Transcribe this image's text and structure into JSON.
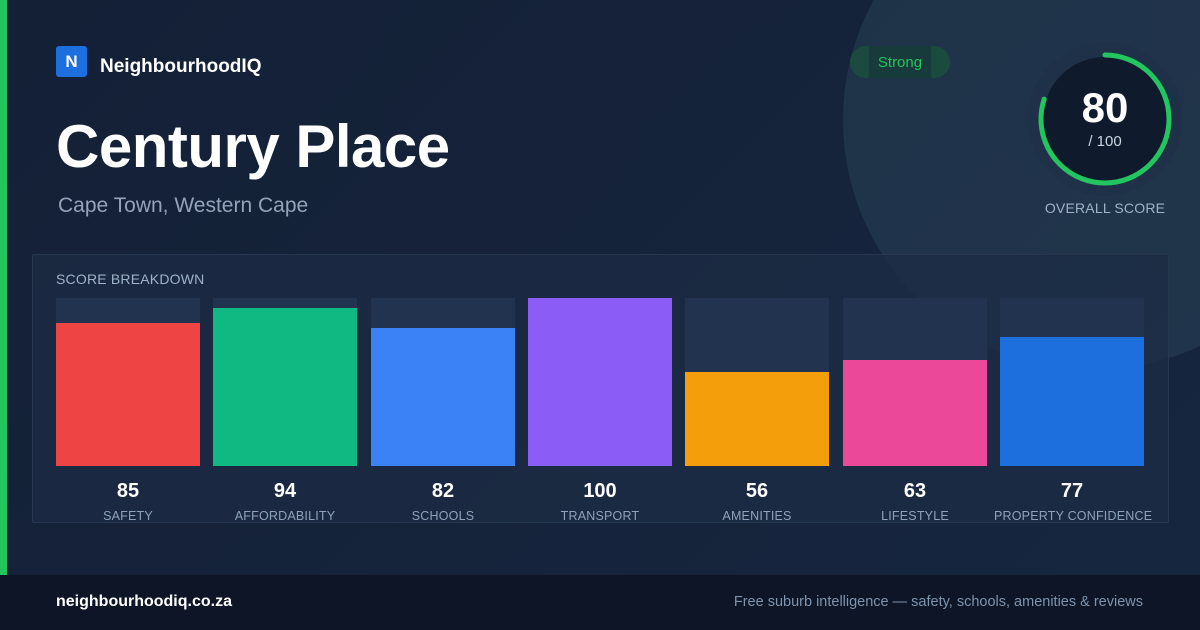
{
  "brand": {
    "logo_letter": "N",
    "name": "NeighbourhoodIQ"
  },
  "suburb": {
    "name": "Century Place",
    "location": "Cape Town, Western Cape"
  },
  "rating": {
    "badge": "Strong",
    "score": "80",
    "max": "/ 100",
    "score_fraction": 0.8,
    "label": "OVERALL SCORE"
  },
  "breakdown": {
    "title": "SCORE BREAKDOWN",
    "items": [
      {
        "value": "85",
        "label": "SAFETY",
        "color": "#ef4444",
        "score": 85
      },
      {
        "value": "94",
        "label": "AFFORDABILITY",
        "color": "#10b981",
        "score": 94
      },
      {
        "value": "82",
        "label": "SCHOOLS",
        "color": "#3b82f6",
        "score": 82
      },
      {
        "value": "100",
        "label": "TRANSPORT",
        "color": "#8b5cf6",
        "score": 100
      },
      {
        "value": "56",
        "label": "AMENITIES",
        "color": "#f59e0b",
        "score": 56
      },
      {
        "value": "63",
        "label": "LIFESTYLE",
        "color": "#ec4899",
        "score": 63
      },
      {
        "value": "77",
        "label": "PROPERTY CONFIDENCE",
        "color": "#1d6fde",
        "score": 77
      }
    ]
  },
  "footer": {
    "url": "neighbourhoodiq.co.za",
    "tagline": "Free suburb intelligence — safety, schools, amenities & reviews"
  },
  "colors": {
    "accent": "#22c55e",
    "brand_blue": "#1d6fe0"
  }
}
